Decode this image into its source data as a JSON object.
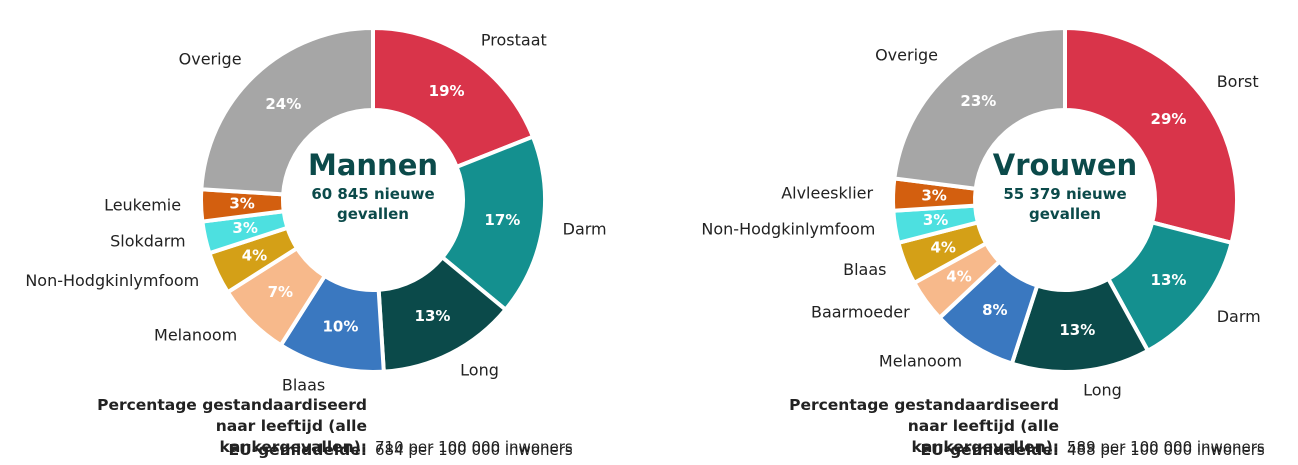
{
  "chart_data": [
    {
      "type": "donut",
      "title": "Mannen",
      "subtitle": "60 845 nieuwe gevallen",
      "categories": [
        "Prostaat",
        "Darm",
        "Long",
        "Blaas",
        "Melanoom",
        "Non-Hodgkinlymfoom",
        "Slokdarm",
        "Leukemie",
        "Overige"
      ],
      "values": [
        19,
        17,
        13,
        10,
        7,
        4,
        3,
        3,
        24
      ],
      "value_labels": [
        "19%",
        "17%",
        "13%",
        "10%",
        "7%",
        "4%",
        "3%",
        "3%",
        "24%"
      ],
      "colors": [
        "#d9344a",
        "#14908f",
        "#0b4a4a",
        "#3a78c0",
        "#f7b98b",
        "#d4a017",
        "#4de0e0",
        "#d35f0f",
        "#a6a6a6"
      ],
      "footnotes": [
        {
          "label": "Percentage gestandaardiseerd naar leeftijd (alle kankergevallen):",
          "value": "710 per 100 000 inwoners"
        },
        {
          "label": "EU-gemiddelde:",
          "value": "684 per 100 000 inwoners"
        }
      ]
    },
    {
      "type": "donut",
      "title": "Vrouwen",
      "subtitle": "55 379 nieuwe gevallen",
      "categories": [
        "Borst",
        "Darm",
        "Long",
        "Melanoom",
        "Baarmoeder",
        "Blaas",
        "Non-Hodgkinlymfoom",
        "Alvleesklier",
        "Overige"
      ],
      "values": [
        29,
        13,
        13,
        8,
        4,
        4,
        3,
        3,
        23
      ],
      "value_labels": [
        "29%",
        "13%",
        "13%",
        "8%",
        "4%",
        "4%",
        "3%",
        "3%",
        "23%"
      ],
      "colors": [
        "#d9344a",
        "#14908f",
        "#0b4a4a",
        "#3a78c0",
        "#f7b98b",
        "#d4a017",
        "#4de0e0",
        "#d35f0f",
        "#a6a6a6"
      ],
      "footnotes": [
        {
          "label": "Percentage gestandaardiseerd naar leeftijd (alle kankergevallen):",
          "value": "589 per 100 000 inwoners"
        },
        {
          "label": "EU-gemiddelde:",
          "value": "488 per 100 000 inwoners"
        }
      ]
    }
  ]
}
